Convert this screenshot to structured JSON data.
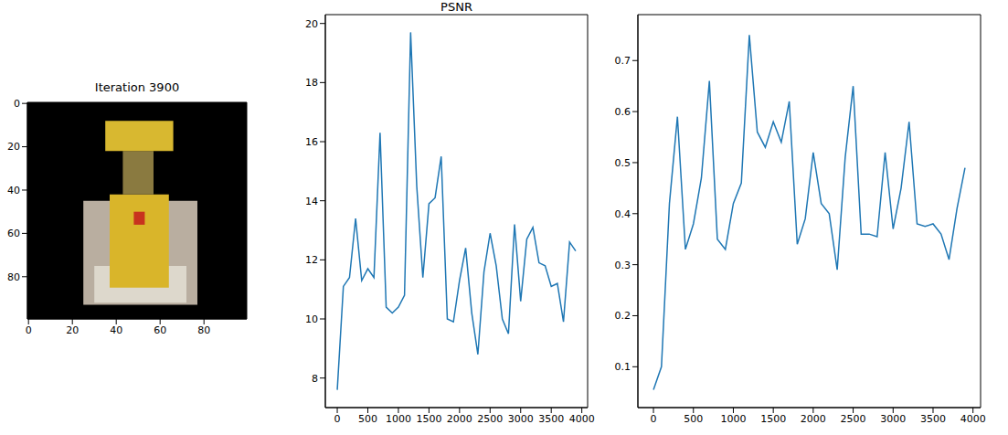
{
  "chart_data": [
    {
      "type": "image",
      "title": "Iteration 3900",
      "xlim": [
        -0.5,
        99.5
      ],
      "ylim": [
        99.5,
        -0.5
      ],
      "xticks": [
        0,
        20,
        40,
        60,
        80
      ],
      "yticks": [
        0,
        20,
        40,
        60,
        80
      ]
    },
    {
      "type": "line",
      "title": "PSNR",
      "color": "#1f77b4",
      "x": [
        0,
        100,
        200,
        300,
        400,
        500,
        600,
        700,
        800,
        900,
        1000,
        1100,
        1200,
        1300,
        1400,
        1500,
        1600,
        1700,
        1800,
        1900,
        2000,
        2100,
        2200,
        2300,
        2400,
        2500,
        2600,
        2700,
        2800,
        2900,
        3000,
        3100,
        3200,
        3300,
        3400,
        3500,
        3600,
        3700,
        3800,
        3900
      ],
      "values": [
        7.6,
        11.1,
        11.4,
        13.4,
        11.3,
        11.7,
        11.4,
        16.3,
        10.4,
        10.2,
        10.4,
        10.8,
        19.7,
        14.5,
        11.4,
        13.9,
        14.1,
        15.5,
        10.0,
        9.9,
        11.3,
        12.4,
        10.2,
        8.8,
        11.6,
        12.9,
        11.8,
        10.0,
        9.5,
        13.2,
        10.6,
        12.7,
        13.1,
        11.9,
        11.8,
        11.1,
        11.2,
        9.9,
        12.6,
        12.3
      ],
      "xlim": [
        -195,
        4095
      ],
      "xticks": [
        0,
        500,
        1000,
        1500,
        2000,
        2500,
        3000,
        3500,
        4000
      ],
      "ylim": [
        7.0,
        20.3
      ],
      "yticks": [
        8,
        10,
        12,
        14,
        16,
        18,
        20
      ]
    },
    {
      "type": "line",
      "color": "#1f77b4",
      "x": [
        0,
        100,
        200,
        300,
        400,
        500,
        600,
        700,
        800,
        900,
        1000,
        1100,
        1200,
        1300,
        1400,
        1500,
        1600,
        1700,
        1800,
        1900,
        2000,
        2100,
        2200,
        2300,
        2400,
        2500,
        2600,
        2700,
        2800,
        2900,
        3000,
        3100,
        3200,
        3300,
        3400,
        3500,
        3600,
        3700,
        3800,
        3900
      ],
      "values": [
        0.055,
        0.1,
        0.42,
        0.59,
        0.33,
        0.38,
        0.47,
        0.66,
        0.35,
        0.33,
        0.42,
        0.46,
        0.75,
        0.56,
        0.53,
        0.58,
        0.54,
        0.62,
        0.34,
        0.39,
        0.52,
        0.42,
        0.4,
        0.29,
        0.51,
        0.65,
        0.36,
        0.36,
        0.355,
        0.52,
        0.37,
        0.45,
        0.58,
        0.38,
        0.375,
        0.38,
        0.36,
        0.31,
        0.41,
        0.49
      ],
      "xlim": [
        -195,
        4095
      ],
      "xticks": [
        0,
        500,
        1000,
        1500,
        2000,
        2500,
        3000,
        3500,
        4000
      ],
      "ylim": [
        0.02,
        0.79
      ],
      "yticks": [
        0.1,
        0.2,
        0.3,
        0.4,
        0.5,
        0.6,
        0.7
      ]
    }
  ]
}
